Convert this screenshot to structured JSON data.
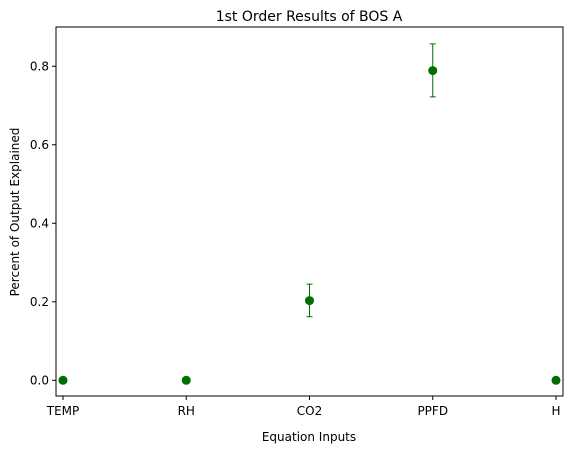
{
  "chart_data": {
    "type": "scatter",
    "title": "1st Order Results of BOS A",
    "xlabel": "Equation Inputs",
    "ylabel": "Percent of Output Explained",
    "categories": [
      "TEMP",
      "RH",
      "CO2",
      "PPFD",
      "H"
    ],
    "series": [
      {
        "values": [
          0.0,
          0.0,
          0.203,
          0.789,
          0.0
        ],
        "error_low": [
          0.0,
          0.0,
          0.162,
          0.722,
          0.0
        ],
        "error_high": [
          0.0,
          0.0,
          0.245,
          0.857,
          0.0
        ]
      }
    ],
    "ylim": [
      -0.04,
      0.9
    ],
    "yticks": [
      0.0,
      0.2,
      0.4,
      0.6,
      0.8
    ],
    "ytick_labels": [
      "0.0",
      "0.2",
      "0.4",
      "0.6",
      "0.8"
    ],
    "grid": false,
    "legend": "none",
    "colors": {
      "marker": "#006e00",
      "axis": "#000000"
    }
  }
}
